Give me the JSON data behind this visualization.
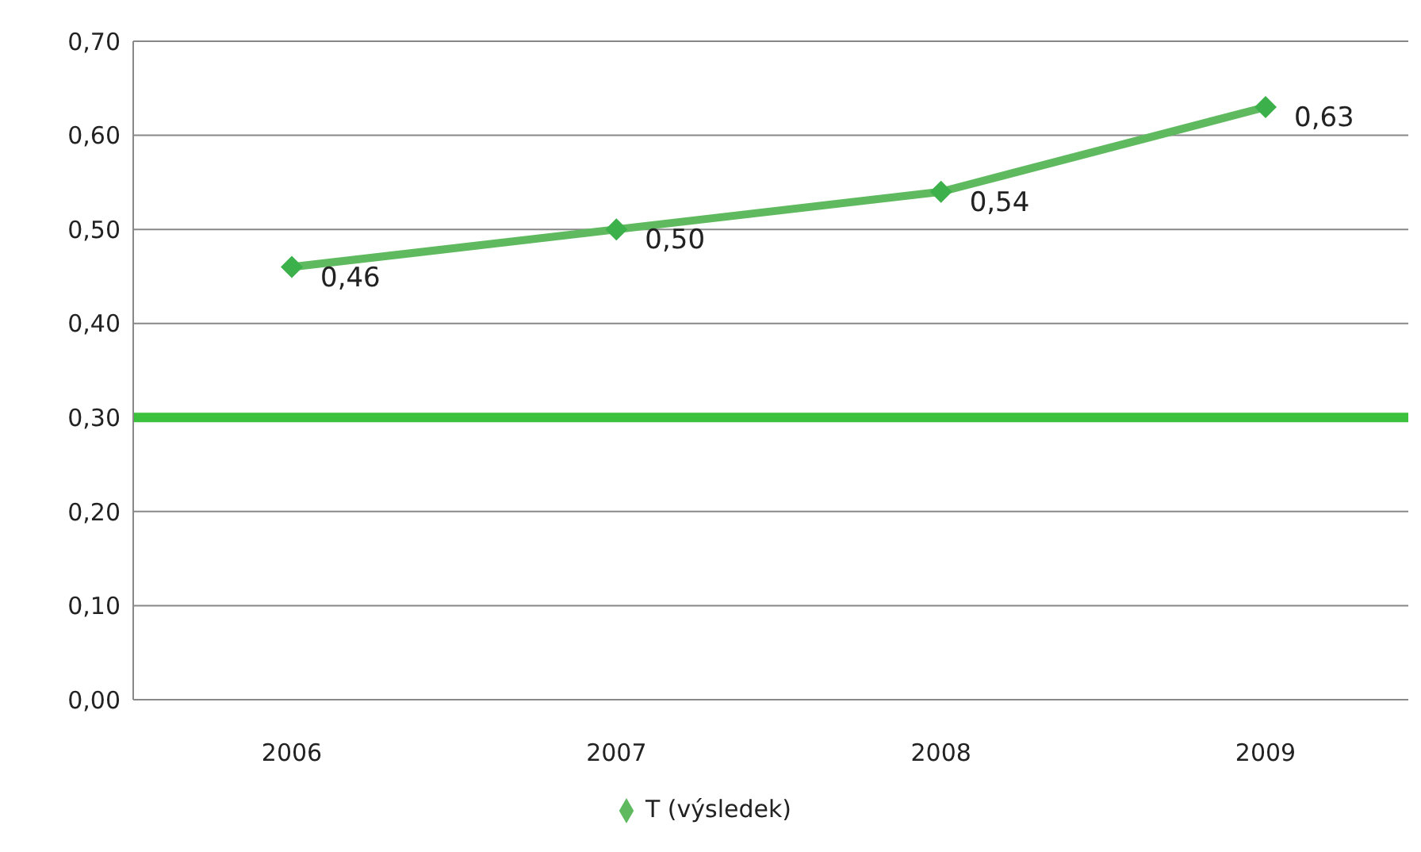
{
  "chart_data": {
    "type": "line",
    "categories": [
      "2006",
      "2007",
      "2008",
      "2009"
    ],
    "series": [
      {
        "name": "T (výsledek)",
        "color": "#5fba5f",
        "values": [
          0.46,
          0.5,
          0.54,
          0.63
        ],
        "value_labels": [
          "0,46",
          "0,50",
          "0,54",
          "0,63"
        ]
      }
    ],
    "ylim": [
      0,
      0.7
    ],
    "yticks": [
      {
        "value": 0,
        "label": "0,00"
      },
      {
        "value": 0.1,
        "label": "0,10"
      },
      {
        "value": 0.2,
        "label": "0,20"
      },
      {
        "value": 0.3,
        "label": "0,30"
      },
      {
        "value": 0.4,
        "label": "0,40"
      },
      {
        "value": 0.5,
        "label": "0,50"
      },
      {
        "value": 0.6,
        "label": "0,60"
      },
      {
        "value": 0.7,
        "label": "0,70"
      }
    ],
    "ref_lines": [
      {
        "axis": "y",
        "value": 0.3,
        "color": "#3cc13c"
      }
    ],
    "grid": "y",
    "legend": "bottom",
    "marker": "diamond",
    "line_style": "solid"
  }
}
